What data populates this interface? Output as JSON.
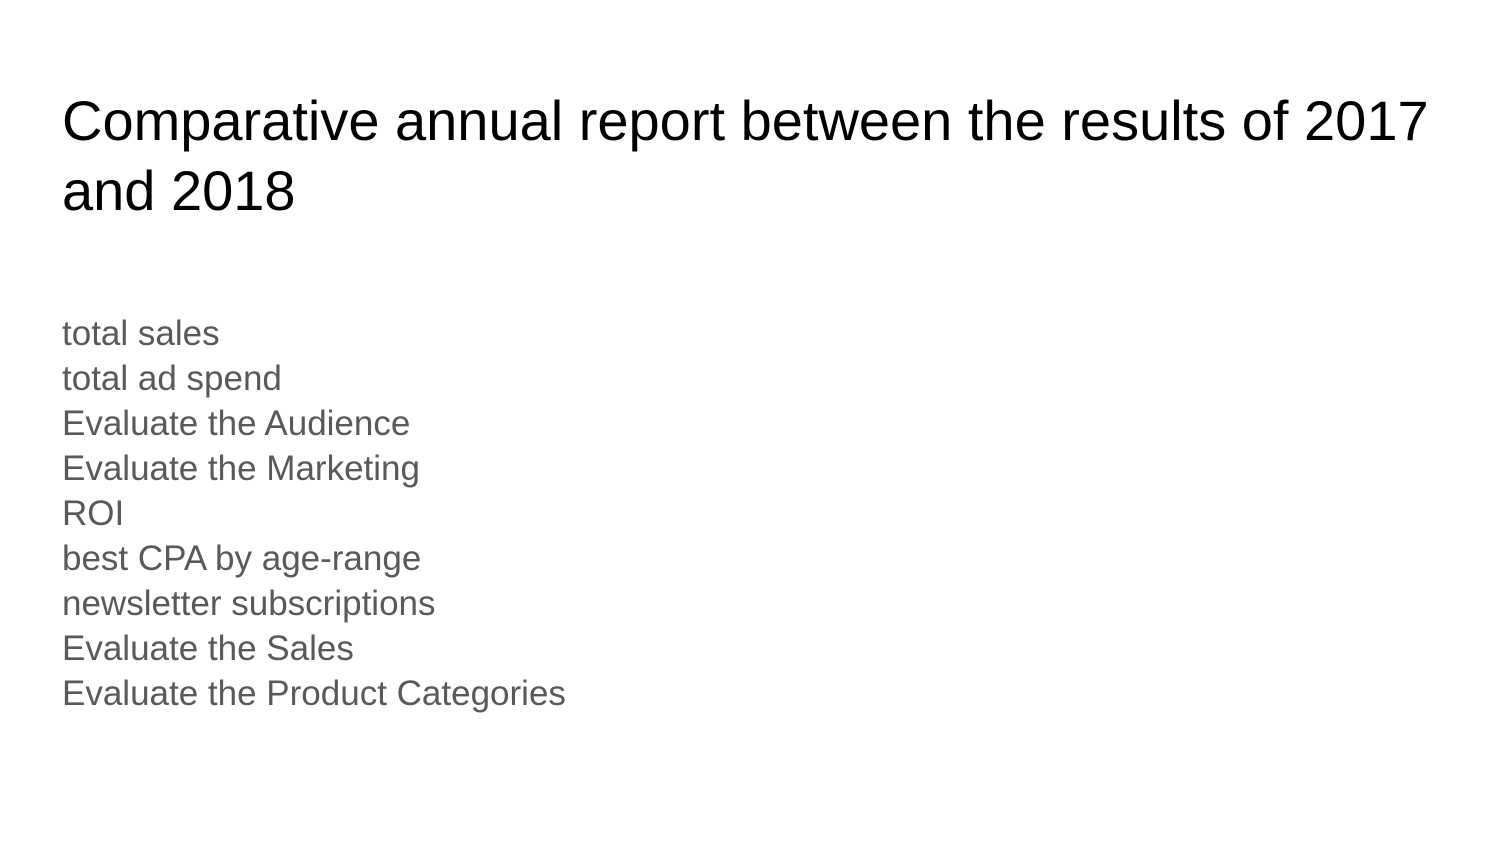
{
  "slide": {
    "title": "Comparative annual report between the results of 2017 and 2018",
    "items": [
      "total sales",
      "total ad spend",
      "Evaluate the Audience",
      "Evaluate the Marketing",
      "ROI",
      "best CPA by age-range",
      "newsletter subscriptions",
      "Evaluate the Sales",
      "Evaluate the Product Categories"
    ]
  },
  "colors": {
    "title": "#000000",
    "body_text": "#595959",
    "background": "#ffffff"
  }
}
